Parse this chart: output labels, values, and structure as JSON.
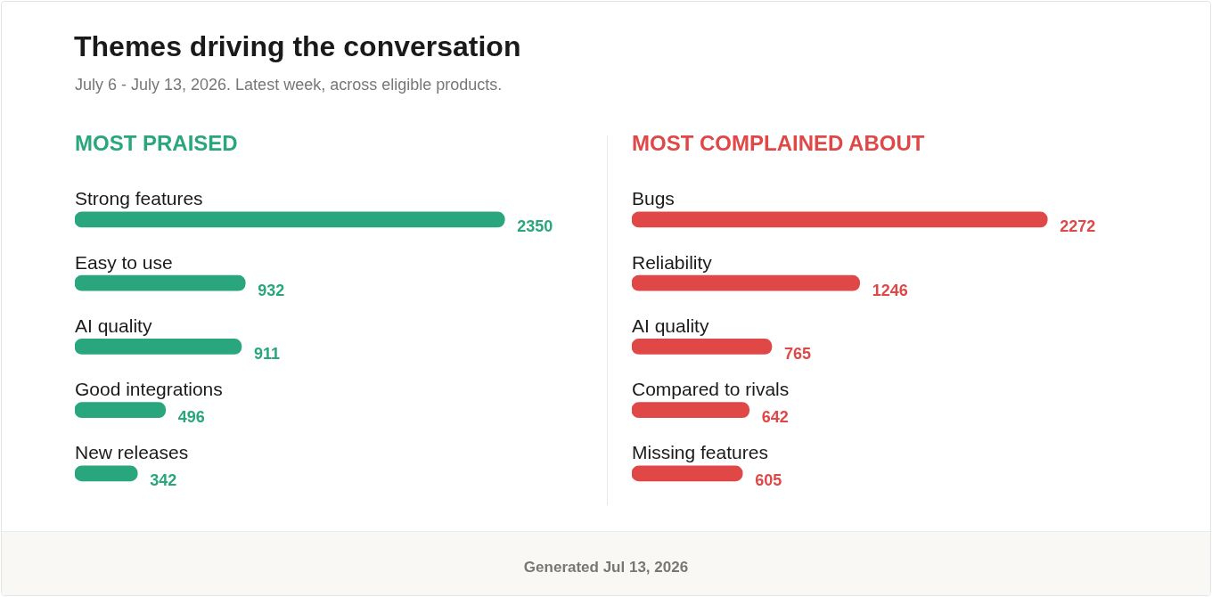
{
  "chart_data": [
    {
      "type": "other",
      "title": "Themes driving the conversation",
      "subtitle": "July 6 - July 13, 2026. Latest week, across eligible products.",
      "annotations": [
        "Generated Jul 13, 2026"
      ]
    },
    {
      "type": "bar",
      "orientation": "horizontal",
      "title": "MOST PRAISED",
      "categories": [
        "Strong features",
        "Easy to use",
        "AI quality",
        "Good integrations",
        "New releases"
      ],
      "values": [
        2350,
        932,
        911,
        496,
        342
      ],
      "color": "#2aa67e",
      "data_labels": true,
      "tick_labels": false
    },
    {
      "type": "bar",
      "orientation": "horizontal",
      "title": "MOST COMPLAINED ABOUT",
      "categories": [
        "Bugs",
        "Reliability",
        "AI quality",
        "Compared to rivals",
        "Missing features"
      ],
      "values": [
        2272,
        1246,
        765,
        642,
        605
      ],
      "color": "#e04848",
      "data_labels": true,
      "tick_labels": false
    }
  ]
}
